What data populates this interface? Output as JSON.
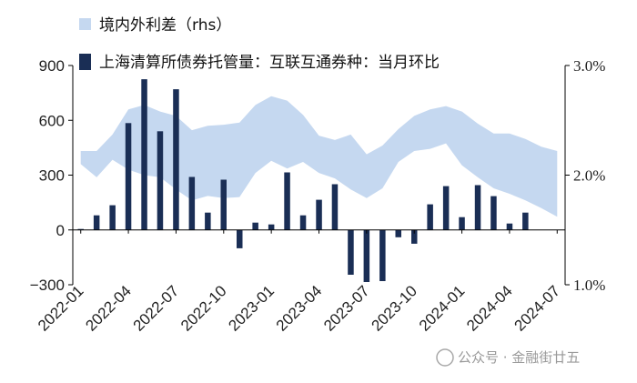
{
  "chart_data": {
    "type": "bar+band",
    "x": [
      "2022-01",
      "2022-02",
      "2022-03",
      "2022-04",
      "2022-05",
      "2022-06",
      "2022-07",
      "2022-08",
      "2022-09",
      "2022-10",
      "2022-11",
      "2022-12",
      "2023-01",
      "2023-02",
      "2023-03",
      "2023-04",
      "2023-05",
      "2023-06",
      "2023-07",
      "2023-08",
      "2023-09",
      "2023-10",
      "2023-11",
      "2023-12",
      "2024-01",
      "2024-02",
      "2024-03",
      "2024-04",
      "2024-05",
      "2024-06",
      "2024-07"
    ],
    "xtick_labels": [
      "2022-01",
      "2022-04",
      "2022-07",
      "2022-10",
      "2023-01",
      "2023-04",
      "2023-07",
      "2023-10",
      "2024-01",
      "2024-04",
      "2024-07"
    ],
    "series": [
      {
        "name": "上海清算所债券托管量：互联互通券种：当月环比",
        "axis": "left",
        "color": "#1a2e55",
        "values": [
          5,
          80,
          135,
          585,
          825,
          540,
          770,
          290,
          95,
          275,
          -100,
          40,
          30,
          315,
          80,
          165,
          250,
          -245,
          -285,
          -280,
          -40,
          -75,
          140,
          240,
          70,
          245,
          185,
          35,
          95,
          null,
          null
        ]
      },
      {
        "name": "境内外利差（rhs）",
        "axis": "right",
        "color": "#c5d8f0",
        "lower": [
          2.1,
          1.98,
          2.14,
          2.05,
          2.0,
          1.98,
          1.87,
          1.77,
          1.81,
          1.79,
          1.8,
          2.02,
          2.13,
          2.06,
          2.12,
          2.02,
          1.97,
          1.87,
          1.79,
          1.88,
          2.12,
          2.22,
          2.24,
          2.29,
          2.09,
          1.98,
          1.88,
          1.83,
          1.77,
          1.7,
          1.62
        ],
        "upper": [
          2.22,
          2.22,
          2.37,
          2.6,
          2.64,
          2.58,
          2.54,
          2.41,
          2.45,
          2.46,
          2.48,
          2.64,
          2.72,
          2.68,
          2.55,
          2.36,
          2.32,
          2.37,
          2.19,
          2.27,
          2.42,
          2.54,
          2.6,
          2.63,
          2.58,
          2.47,
          2.38,
          2.38,
          2.33,
          2.26,
          2.22
        ]
      }
    ],
    "y_left": {
      "min": -300,
      "max": 900,
      "ticks": [
        -300,
        0,
        300,
        600,
        900
      ]
    },
    "y_right": {
      "min": 1.0,
      "max": 3.0,
      "ticks": [
        1.0,
        2.0,
        3.0
      ],
      "tick_labels": [
        "1.0%",
        "2.0%",
        "3.0%"
      ]
    },
    "legend": [
      "境内外利差（rhs）",
      "上海清算所债券托管量：互联互通券种：当月环比"
    ],
    "legend_position": "top"
  },
  "watermark": "公众号 · 金融街廿五"
}
